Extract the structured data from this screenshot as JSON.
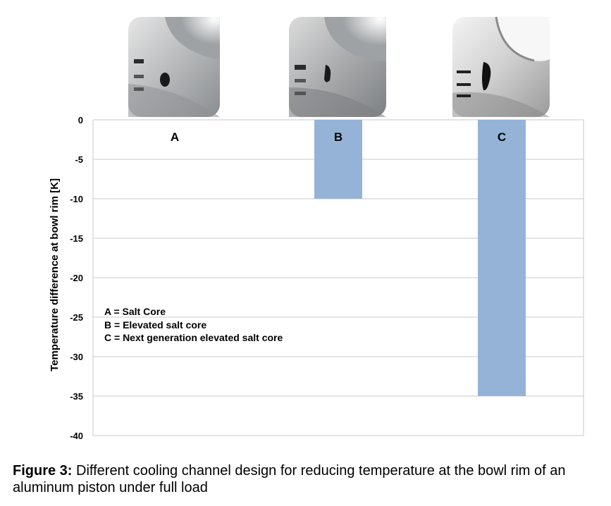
{
  "chart_data": {
    "type": "bar",
    "categories": [
      "A",
      "B",
      "C"
    ],
    "values": [
      0,
      -10,
      -35
    ],
    "ylabel": "Temperature difference at bowl rim [K]",
    "ylim": [
      -40,
      0
    ],
    "yticks": [
      0,
      -5,
      -10,
      -15,
      -20,
      -25,
      -30,
      -35,
      -40
    ],
    "bar_color": "#95b3d7",
    "grid": true,
    "legend_lines": [
      "A = Salt Core",
      "B = Elevated salt core",
      "C = Next generation elevated salt core"
    ],
    "category_images": [
      "piston-cross-section-a",
      "piston-cross-section-b",
      "piston-cross-section-c"
    ]
  },
  "caption": {
    "label": "Figure 3:",
    "text": "Different cooling channel design for reducing temperature at the bowl rim of an aluminum piston under full load"
  }
}
